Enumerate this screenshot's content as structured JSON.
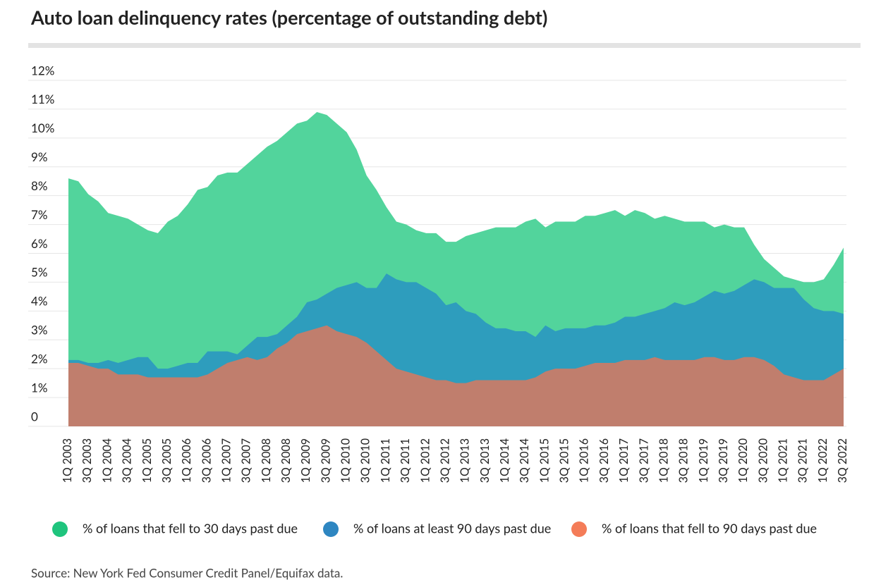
{
  "chart_data": {
    "type": "area",
    "title": "Auto loan delinquency rates (percentage of outstanding debt)",
    "source": "Source: New York Fed Consumer Credit Panel/Equifax data.",
    "categories": [
      "1Q 2003",
      null,
      "3Q 2003",
      null,
      "1Q 2004",
      null,
      "3Q 2004",
      null,
      "1Q 2005",
      null,
      "3Q 2005",
      null,
      "1Q 2006",
      null,
      "3Q 2006",
      null,
      "1Q 2007",
      null,
      "3Q 2007",
      null,
      "1Q 2008",
      null,
      "3Q 2008",
      null,
      "1Q 2009",
      null,
      "3Q 2009",
      null,
      "1Q 2010",
      null,
      "3Q 2010",
      null,
      "1Q 2011",
      null,
      "3Q 2011",
      null,
      "1Q 2012",
      null,
      "3Q 2012",
      null,
      "1Q 2013",
      null,
      "3Q 2013",
      null,
      "1Q 2014",
      null,
      "3Q 2014",
      null,
      "1Q 2015",
      null,
      "3Q 2015",
      null,
      "1Q 2016",
      null,
      "3Q 2016",
      null,
      "1Q 2017",
      null,
      "3Q 2017",
      null,
      "1Q 2018",
      null,
      "3Q 2018",
      null,
      "1Q 2019",
      null,
      "3Q 2019",
      null,
      "1Q 2020",
      null,
      "3Q 2020",
      null,
      "1Q 2021",
      null,
      "3Q 2021",
      null,
      "1Q 2022",
      null,
      "3Q 2022"
    ],
    "series": [
      {
        "name": "% of loans that fell to 30 days past due",
        "color": "#52d49c",
        "values": [
          8.6,
          8.5,
          8.05,
          7.8,
          7.4,
          7.3,
          7.2,
          7.0,
          6.8,
          6.7,
          7.1,
          7.3,
          7.7,
          8.2,
          8.3,
          8.7,
          8.8,
          8.8,
          9.1,
          9.4,
          9.7,
          9.9,
          10.2,
          10.5,
          10.6,
          10.9,
          10.8,
          10.5,
          10.2,
          9.6,
          8.7,
          8.2,
          7.6,
          7.1,
          7.0,
          6.8,
          6.7,
          6.7,
          6.4,
          6.4,
          6.6,
          6.7,
          6.8,
          6.9,
          6.9,
          6.9,
          7.1,
          7.2,
          6.9,
          7.1,
          7.1,
          7.1,
          7.3,
          7.3,
          7.4,
          7.5,
          7.3,
          7.5,
          7.4,
          7.2,
          7.3,
          7.2,
          7.1,
          7.1,
          7.1,
          6.9,
          7.0,
          6.9,
          6.9,
          6.3,
          5.8,
          5.5,
          5.2,
          5.1,
          5.0,
          5.0,
          5.1,
          5.6,
          6.2
        ]
      },
      {
        "name": "% of loans at least 90 days past due",
        "color": "#2e9dbd",
        "values": [
          2.3,
          2.3,
          2.2,
          2.2,
          2.3,
          2.2,
          2.3,
          2.4,
          2.4,
          2.0,
          2.0,
          2.1,
          2.2,
          2.2,
          2.6,
          2.6,
          2.6,
          2.5,
          2.8,
          3.1,
          3.1,
          3.2,
          3.5,
          3.8,
          4.3,
          4.4,
          4.6,
          4.8,
          4.9,
          5.0,
          4.8,
          4.8,
          5.3,
          5.1,
          5.0,
          5.0,
          4.8,
          4.6,
          4.2,
          4.3,
          4.0,
          3.9,
          3.6,
          3.4,
          3.4,
          3.3,
          3.3,
          3.1,
          3.5,
          3.3,
          3.4,
          3.4,
          3.4,
          3.5,
          3.5,
          3.6,
          3.8,
          3.8,
          3.9,
          4.0,
          4.1,
          4.3,
          4.2,
          4.3,
          4.5,
          4.7,
          4.6,
          4.7,
          4.9,
          5.1,
          5.0,
          4.8,
          4.8,
          4.8,
          4.4,
          4.1,
          4.0,
          4.0,
          3.9
        ]
      },
      {
        "name": "% of loans that fell to 90 days past due",
        "color": "#c07e6d",
        "values": [
          2.2,
          2.2,
          2.1,
          2.0,
          2.0,
          1.8,
          1.8,
          1.8,
          1.7,
          1.7,
          1.7,
          1.7,
          1.7,
          1.7,
          1.8,
          2.0,
          2.2,
          2.3,
          2.4,
          2.3,
          2.4,
          2.7,
          2.9,
          3.2,
          3.3,
          3.4,
          3.5,
          3.3,
          3.2,
          3.1,
          2.9,
          2.6,
          2.3,
          2.0,
          1.9,
          1.8,
          1.7,
          1.6,
          1.6,
          1.5,
          1.5,
          1.6,
          1.6,
          1.6,
          1.6,
          1.6,
          1.6,
          1.7,
          1.9,
          2.0,
          2.0,
          2.0,
          2.1,
          2.2,
          2.2,
          2.2,
          2.3,
          2.3,
          2.3,
          2.4,
          2.3,
          2.3,
          2.3,
          2.3,
          2.4,
          2.4,
          2.3,
          2.3,
          2.4,
          2.4,
          2.3,
          2.1,
          1.8,
          1.7,
          1.6,
          1.6,
          1.6,
          1.8,
          2.0
        ]
      }
    ],
    "legend_colors": [
      "#1fc47d",
      "#2e86c1",
      "#f47c58"
    ],
    "ylim": [
      0,
      12
    ],
    "yticks": [
      0,
      {
        "value": 1,
        "label": "1%"
      },
      {
        "value": 2,
        "label": "2%"
      },
      {
        "value": 3,
        "label": "3%"
      },
      {
        "value": 4,
        "label": "4%"
      },
      {
        "value": 5,
        "label": "5%"
      },
      {
        "value": 6,
        "label": "6%"
      },
      {
        "value": 7,
        "label": "7%"
      },
      {
        "value": 8,
        "label": "8%"
      },
      {
        "value": 9,
        "label": "9%"
      },
      {
        "value": 10,
        "label": "10%"
      },
      {
        "value": 11,
        "label": "11%"
      },
      {
        "value": 12,
        "label": "12%"
      }
    ],
    "grid": true
  }
}
